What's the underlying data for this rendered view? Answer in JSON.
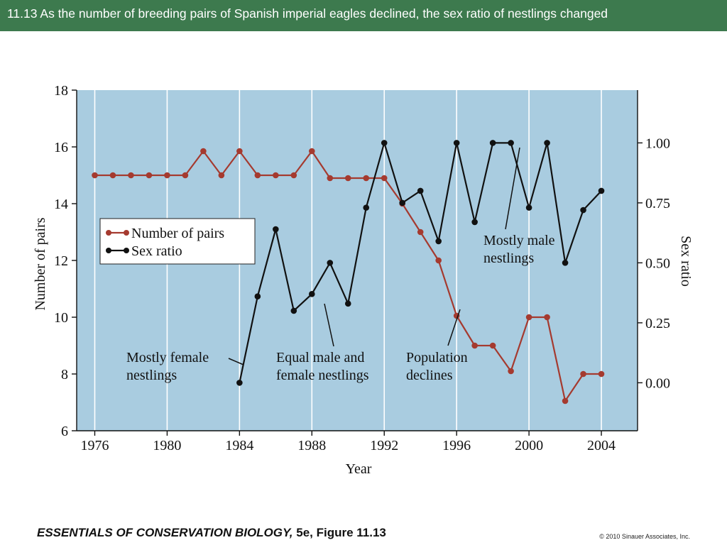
{
  "header": {
    "title": "11.13  As the number of breeding pairs of Spanish imperial eagles declined, the sex ratio of nestlings changed"
  },
  "chart_data": {
    "type": "line",
    "title": "",
    "xlabel": "Year",
    "ylabel_left": "Number of pairs",
    "ylabel_right": "Sex ratio",
    "xlim": [
      1975,
      2006
    ],
    "ylim_left": [
      6,
      18
    ],
    "ylim_right": [
      -0.2,
      1.22
    ],
    "x_ticks": [
      1976,
      1980,
      1984,
      1988,
      1992,
      1996,
      2000,
      2004
    ],
    "y_ticks_left": [
      6,
      8,
      10,
      12,
      14,
      16,
      18
    ],
    "y_ticks_right": [
      "0.00",
      "0.25",
      "0.50",
      "0.75",
      "1.00"
    ],
    "grid": "vertical",
    "legend_position": "left",
    "colors": {
      "plot_bg": "#a9cce0",
      "grid": "#ffffff",
      "pairs": "#a53a2f",
      "ratio": "#111111"
    },
    "series": [
      {
        "name": "Number of pairs",
        "axis": "left",
        "color": "#a53a2f",
        "x": [
          1976,
          1977,
          1978,
          1979,
          1980,
          1981,
          1982,
          1983,
          1984,
          1985,
          1986,
          1987,
          1988,
          1989,
          1990,
          1991,
          1992,
          1993,
          1994,
          1995,
          1996,
          1997,
          1998,
          1999,
          2000,
          2001,
          2002,
          2003,
          2004
        ],
        "values": [
          15,
          15,
          15,
          15,
          15,
          15,
          15.85,
          15,
          15.85,
          15,
          15,
          15,
          15.85,
          14.9,
          14.9,
          14.9,
          14.9,
          14,
          13,
          12,
          10.05,
          9,
          9,
          8.1,
          10,
          10,
          7.05,
          8,
          8
        ]
      },
      {
        "name": "Sex ratio",
        "axis": "right",
        "color": "#111111",
        "x": [
          1984,
          1985,
          1986,
          1987,
          1988,
          1989,
          1990,
          1991,
          1992,
          1993,
          1994,
          1995,
          1996,
          1997,
          1998,
          1999,
          2000,
          2001,
          2002,
          2003,
          2004
        ],
        "values": [
          0.0,
          0.36,
          0.64,
          0.3,
          0.37,
          0.5,
          0.33,
          0.73,
          1.0,
          0.75,
          0.8,
          0.59,
          1.0,
          0.67,
          1.0,
          1.0,
          0.73,
          1.0,
          0.5,
          0.72,
          0.8
        ]
      }
    ],
    "annotations": {
      "female": [
        "Mostly female",
        "nestlings"
      ],
      "equal": [
        "Equal male and",
        "female nestlings"
      ],
      "decline": [
        "Population",
        "declines"
      ],
      "male": [
        "Mostly male",
        "nestlings"
      ]
    }
  },
  "footer": {
    "book_title": "ESSENTIALS OF CONSERVATION BIOLOGY,",
    "book_edition": " 5e, Figure 11.13",
    "copyright": "© 2010 Sinauer Associates, Inc."
  }
}
